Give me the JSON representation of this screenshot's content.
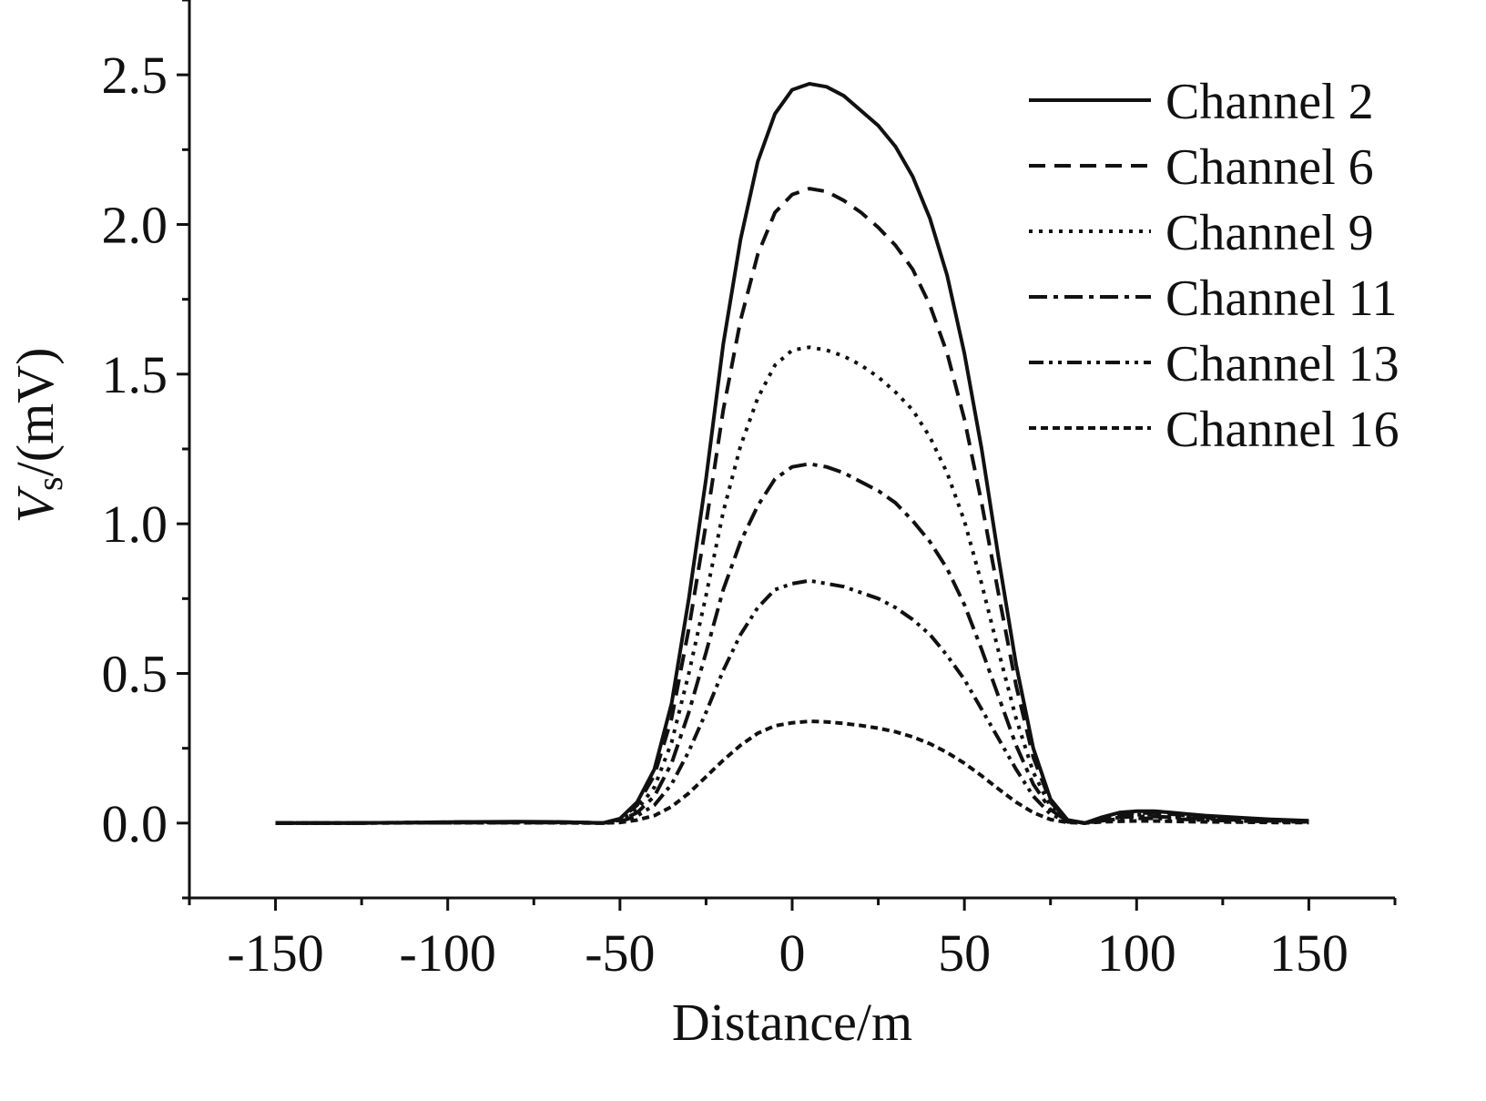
{
  "chart_data": {
    "type": "line",
    "xlabel": "Distance/m",
    "ylabel": {
      "symbol": "V",
      "subscript": "s",
      "unit": "/(mV)"
    },
    "xlim": [
      -175,
      175
    ],
    "ylim": [
      -0.25,
      2.75
    ],
    "xticks": [
      -150,
      -100,
      -50,
      0,
      50,
      100,
      150
    ],
    "xtick_labels": [
      "-150",
      "-100",
      "-50",
      "0",
      "50",
      "100",
      "150"
    ],
    "yticks": [
      0.0,
      0.5,
      1.0,
      1.5,
      2.0,
      2.5
    ],
    "ytick_labels": [
      "0.0",
      "0.5",
      "1.0",
      "1.5",
      "2.0",
      "2.5"
    ],
    "grid": false,
    "legend_position": "top-right",
    "x": [
      -150,
      -140,
      -130,
      -120,
      -110,
      -100,
      -90,
      -80,
      -70,
      -60,
      -55,
      -50,
      -45,
      -40,
      -35,
      -30,
      -25,
      -20,
      -15,
      -10,
      -5,
      0,
      5,
      10,
      15,
      20,
      25,
      30,
      35,
      40,
      45,
      50,
      55,
      60,
      65,
      70,
      75,
      80,
      85,
      90,
      95,
      100,
      105,
      110,
      115,
      120,
      130,
      140,
      150
    ],
    "series": [
      {
        "name": "Channel 2",
        "style": "solid",
        "values": [
          0,
          0,
          0,
          0.001,
          0.002,
          0.003,
          0.004,
          0.005,
          0.004,
          0.002,
          0.0,
          0.015,
          0.07,
          0.18,
          0.4,
          0.75,
          1.15,
          1.6,
          1.95,
          2.21,
          2.37,
          2.45,
          2.47,
          2.46,
          2.43,
          2.38,
          2.33,
          2.26,
          2.16,
          2.02,
          1.83,
          1.57,
          1.25,
          0.88,
          0.53,
          0.25,
          0.08,
          0.01,
          0.0,
          0.02,
          0.035,
          0.04,
          0.04,
          0.035,
          0.03,
          0.025,
          0.018,
          0.012,
          0.008
        ]
      },
      {
        "name": "Channel 6",
        "style": "dashed",
        "values": [
          0,
          0,
          0,
          0.001,
          0.002,
          0.003,
          0.004,
          0.004,
          0.004,
          0.002,
          0.0,
          0.013,
          0.06,
          0.16,
          0.35,
          0.65,
          1.0,
          1.38,
          1.68,
          1.9,
          2.04,
          2.1,
          2.12,
          2.11,
          2.08,
          2.04,
          1.99,
          1.93,
          1.85,
          1.73,
          1.57,
          1.35,
          1.07,
          0.76,
          0.46,
          0.22,
          0.07,
          0.01,
          0.0,
          0.018,
          0.03,
          0.034,
          0.034,
          0.03,
          0.025,
          0.02,
          0.015,
          0.01,
          0.007
        ]
      },
      {
        "name": "Channel 9",
        "style": "dotted",
        "values": [
          0,
          0,
          0,
          0.001,
          0.002,
          0.002,
          0.003,
          0.003,
          0.003,
          0.002,
          0.0,
          0.01,
          0.045,
          0.12,
          0.27,
          0.5,
          0.76,
          1.04,
          1.26,
          1.42,
          1.53,
          1.58,
          1.59,
          1.58,
          1.56,
          1.53,
          1.49,
          1.44,
          1.38,
          1.29,
          1.17,
          1.01,
          0.8,
          0.57,
          0.35,
          0.17,
          0.055,
          0.008,
          0.0,
          0.014,
          0.024,
          0.028,
          0.028,
          0.025,
          0.021,
          0.017,
          0.012,
          0.008,
          0.006
        ]
      },
      {
        "name": "Channel 11",
        "style": "dashdot",
        "values": [
          0,
          0,
          0,
          0.001,
          0.001,
          0.002,
          0.002,
          0.002,
          0.002,
          0.001,
          0.0,
          0.008,
          0.035,
          0.09,
          0.2,
          0.37,
          0.57,
          0.78,
          0.94,
          1.06,
          1.15,
          1.19,
          1.2,
          1.19,
          1.17,
          1.14,
          1.11,
          1.07,
          1.01,
          0.94,
          0.85,
          0.73,
          0.58,
          0.42,
          0.26,
          0.13,
          0.045,
          0.006,
          0.0,
          0.011,
          0.019,
          0.022,
          0.022,
          0.02,
          0.017,
          0.014,
          0.01,
          0.007,
          0.005
        ]
      },
      {
        "name": "Channel 13",
        "style": "dashdotdot",
        "values": [
          0,
          0,
          0,
          0.001,
          0.001,
          0.001,
          0.002,
          0.002,
          0.002,
          0.001,
          0.0,
          0.005,
          0.024,
          0.06,
          0.13,
          0.24,
          0.37,
          0.51,
          0.63,
          0.72,
          0.78,
          0.8,
          0.81,
          0.8,
          0.79,
          0.77,
          0.75,
          0.72,
          0.68,
          0.63,
          0.56,
          0.48,
          0.38,
          0.28,
          0.18,
          0.09,
          0.03,
          0.004,
          0.0,
          0.008,
          0.014,
          0.016,
          0.016,
          0.014,
          0.012,
          0.01,
          0.007,
          0.005,
          0.004
        ]
      },
      {
        "name": "Channel 16",
        "style": "shortdash",
        "values": [
          0,
          0,
          0,
          0.0,
          0.001,
          0.001,
          0.001,
          0.001,
          0.001,
          0.0,
          0.0,
          0.002,
          0.01,
          0.025,
          0.055,
          0.1,
          0.155,
          0.21,
          0.26,
          0.3,
          0.325,
          0.335,
          0.34,
          0.338,
          0.333,
          0.326,
          0.317,
          0.305,
          0.288,
          0.265,
          0.236,
          0.2,
          0.158,
          0.113,
          0.07,
          0.035,
          0.012,
          0.002,
          0.0,
          0.004,
          0.006,
          0.007,
          0.007,
          0.006,
          0.005,
          0.004,
          0.003,
          0.002,
          0.002
        ]
      }
    ]
  }
}
